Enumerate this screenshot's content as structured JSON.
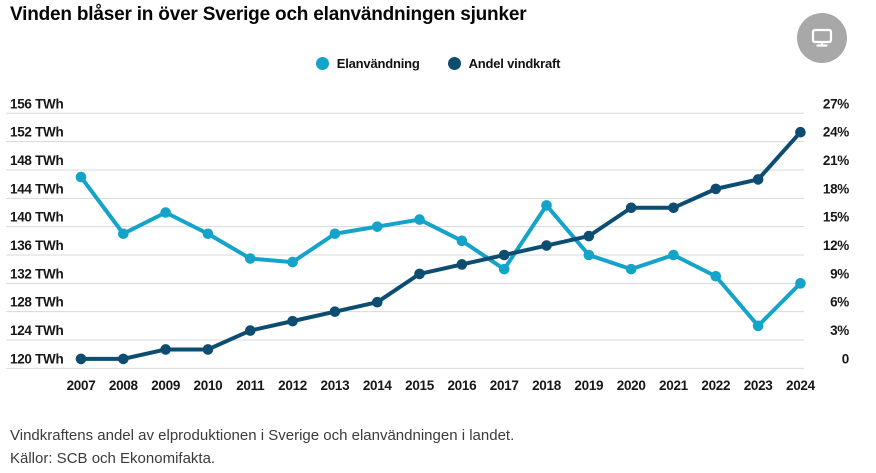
{
  "title": "Vinden blåser in över Sverige och elanvändningen sjunker",
  "controls": {
    "screen_button_icon": "monitor-icon"
  },
  "legend": {
    "items": [
      {
        "label": "Elanvändning",
        "color": "#14a3c9"
      },
      {
        "label": "Andel vindkraft",
        "color": "#0e4d72"
      }
    ]
  },
  "chart_data": {
    "type": "line",
    "title": "Vinden blåser in över Sverige och elanvändningen sjunker",
    "categories": [
      "2007",
      "2008",
      "2009",
      "2010",
      "2011",
      "2012",
      "2013",
      "2014",
      "2015",
      "2016",
      "2017",
      "2018",
      "2019",
      "2020",
      "2021",
      "2022",
      "2023",
      "2024"
    ],
    "series": [
      {
        "name": "Elanvandning",
        "label": "Elanvändning",
        "axis": "left",
        "unit": "TWh",
        "color": "#14a3c9",
        "values": [
          147,
          139,
          142,
          139,
          135.5,
          135,
          139,
          140,
          141,
          138,
          134,
          143,
          136,
          134,
          136,
          133,
          126,
          132
        ]
      },
      {
        "name": "Andel-vindkraft",
        "label": "Andel vindkraft",
        "axis": "right",
        "unit": "%",
        "color": "#0e4d72",
        "values": [
          1,
          1,
          2,
          2,
          4,
          5,
          6,
          7,
          10,
          11,
          12,
          13,
          14,
          17,
          17,
          19,
          20,
          25
        ]
      }
    ],
    "left_axis": {
      "unit": "TWh",
      "min": 120,
      "max": 156,
      "step": 4,
      "tick_labels": [
        "156 TWh",
        "152 TWh",
        "148 TWh",
        "144 TWh",
        "140 TWh",
        "136 TWh",
        "132 TWh",
        "128 TWh",
        "124 TWh",
        "120 TWh"
      ]
    },
    "right_axis": {
      "unit": "%",
      "min": 0,
      "max": 27,
      "step": 3,
      "tick_labels": [
        "27%",
        "24%",
        "21%",
        "18%",
        "15%",
        "12%",
        "9%",
        "6%",
        "3%",
        "0"
      ]
    },
    "grid": true,
    "legend_position": "top"
  },
  "footer": {
    "line1": "Vindkraftens andel av elproduktionen i Sverige och elanvändningen i landet.",
    "line2": "Källor: SCB och Ekonomifakta."
  }
}
